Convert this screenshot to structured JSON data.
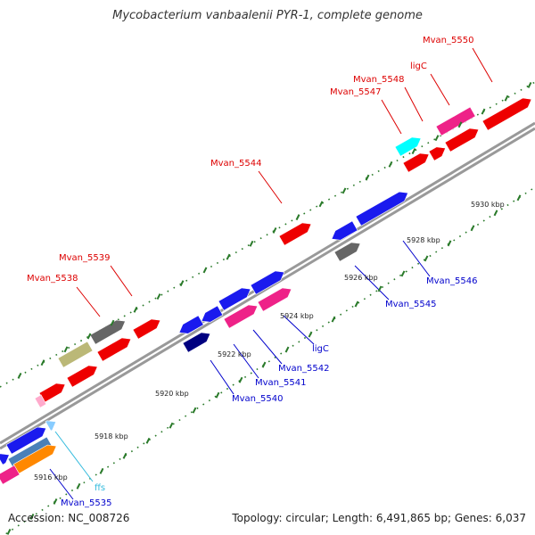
{
  "title": "Mycobacterium vanbaalenii PYR-1, complete genome",
  "footer": {
    "accession": "Accession: NC_008726",
    "info": "Topology: circular; Length: 6,491,865 bp; Genes: 6,037"
  },
  "colors": {
    "backbone": "#999999",
    "tick": "#2a7a2a",
    "label_upper": "#dd0000",
    "label_lower": "#0000cc",
    "label_ffs": "#33bbdd",
    "gene_red": "#ee0000",
    "gene_blue": "#1a1aee",
    "gene_navy": "#000080",
    "gene_pink": "#ee2288",
    "gene_gray": "#666666",
    "gene_olive": "#bbb877",
    "gene_cyan": "#00ffff",
    "gene_orange": "#ff8800",
    "gene_steel": "#4a80b8",
    "gene_lightpink": "#ffaacc",
    "gene_lightblue": "#88ccff"
  },
  "ticks": [
    "5916 kbp",
    "5918 kbp",
    "5920 kbp",
    "5922 kbp",
    "5924 kbp",
    "5926 kbp",
    "5928 kbp",
    "5930 kbp"
  ],
  "labels_upper": [
    "Mvan_5538",
    "Mvan_5539",
    "Mvan_5544",
    "Mvan_5547",
    "Mvan_5548",
    "ligC",
    "Mvan_5550"
  ],
  "labels_lower": [
    "Mvan_5535",
    "Mvan_5540",
    "Mvan_5541",
    "Mvan_5542",
    "ligC",
    "Mvan_5545",
    "Mvan_5546"
  ],
  "labels_rna": [
    "ffs"
  ]
}
